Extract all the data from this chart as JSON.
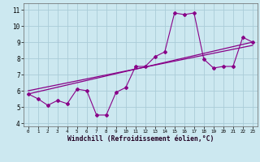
{
  "x_data": [
    0,
    1,
    2,
    3,
    4,
    5,
    6,
    7,
    8,
    9,
    10,
    11,
    12,
    13,
    14,
    15,
    16,
    17,
    18,
    19,
    20,
    21,
    22,
    23
  ],
  "y_measured": [
    5.8,
    5.5,
    5.1,
    5.4,
    5.2,
    6.1,
    6.0,
    4.5,
    4.5,
    5.9,
    6.2,
    7.5,
    7.5,
    8.1,
    8.4,
    10.8,
    10.7,
    10.8,
    7.95,
    7.4,
    7.5,
    7.5,
    9.3,
    9.0
  ],
  "y_trend1_start": 5.8,
  "y_trend1_end": 9.0,
  "y_trend2_start": 6.0,
  "y_trend2_end": 8.8,
  "line_color": "#880088",
  "bg_color": "#cce8f0",
  "grid_color": "#aaccd8",
  "xlabel": "Windchill (Refroidissement éolien,°C)",
  "ylim": [
    3.8,
    11.4
  ],
  "xlim": [
    -0.5,
    23.5
  ],
  "yticks": [
    4,
    5,
    6,
    7,
    8,
    9,
    10,
    11
  ],
  "xticks": [
    0,
    1,
    2,
    3,
    4,
    5,
    6,
    7,
    8,
    9,
    10,
    11,
    12,
    13,
    14,
    15,
    16,
    17,
    18,
    19,
    20,
    21,
    22,
    23
  ]
}
